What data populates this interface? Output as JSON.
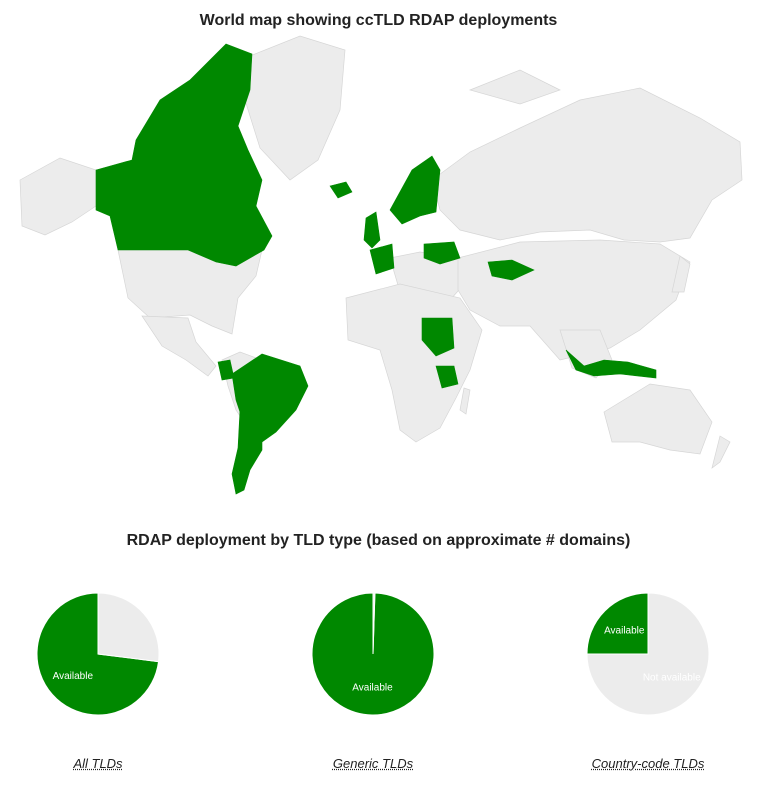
{
  "colors": {
    "available": "#008800",
    "not_available": "#ececec",
    "land_stroke": "#d6d6d6",
    "text": "#222222",
    "slice_label_on_green": "#ffffff",
    "slice_label_on_grey": "#ffffff"
  },
  "map": {
    "title": "World map showing ccTLD RDAP deployments"
  },
  "pies_title": "RDAP deployment by TLD type (based on approximate # domains)",
  "chart_data": [
    {
      "type": "pie",
      "caption": "All TLDs",
      "slices": [
        {
          "label": "Available",
          "value": 73,
          "color": "#008800",
          "show_label": true
        },
        {
          "label": "Not available",
          "value": 27,
          "color": "#ececec",
          "show_label": false
        }
      ]
    },
    {
      "type": "pie",
      "caption": "Generic TLDs",
      "slices": [
        {
          "label": "Available",
          "value": 99.5,
          "color": "#008800",
          "show_label": true
        },
        {
          "label": "Not available",
          "value": 0.5,
          "color": "#ececec",
          "show_label": false
        }
      ]
    },
    {
      "type": "pie",
      "caption": "Country-code TLDs",
      "slices": [
        {
          "label": "Available",
          "value": 25,
          "color": "#008800",
          "show_label": true
        },
        {
          "label": "Not available",
          "value": 75,
          "color": "#ececec",
          "show_label": true
        }
      ]
    }
  ]
}
